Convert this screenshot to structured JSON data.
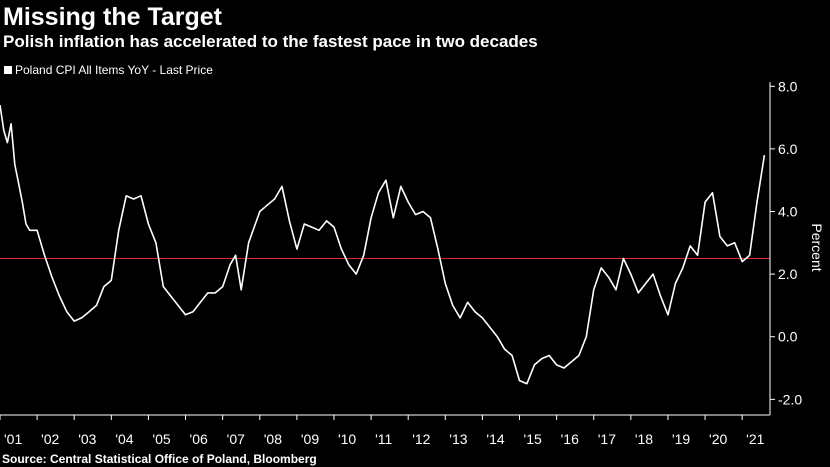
{
  "header": {
    "title": "Missing the Target",
    "subtitle": "Polish inflation has accelerated to the fastest pace in two decades"
  },
  "legend": {
    "label": "Poland CPI All Items YoY - Last Price"
  },
  "source": "Source: Central Statistical Office of Poland, Bloomberg",
  "colors": {
    "background": "#000000",
    "line": "#ffffff",
    "target_line": "#e0282a",
    "axis": "#ffffff"
  },
  "chart_data": {
    "type": "line",
    "title": "Missing the Target",
    "subtitle": "Polish inflation has accelerated to the fastest pace in two decades",
    "xlabel": "",
    "ylabel": "Percent",
    "xlim": [
      2001.0,
      2021.75
    ],
    "ylim": [
      -2.5,
      8.2
    ],
    "yticks": [
      "-2.0",
      "0.0",
      "2.0",
      "4.0",
      "6.0",
      "8.0"
    ],
    "ytick_values": [
      -2,
      0,
      2,
      4,
      6,
      8
    ],
    "xticks": [
      "'01",
      "'02",
      "'03",
      "'04",
      "'05",
      "'06",
      "'07",
      "'08",
      "'09",
      "'10",
      "'11",
      "'12",
      "'13",
      "'14",
      "'15",
      "'16",
      "'17",
      "'18",
      "'19",
      "'20",
      "'21"
    ],
    "xtick_values": [
      2001,
      2002,
      2003,
      2004,
      2005,
      2006,
      2007,
      2008,
      2009,
      2010,
      2011,
      2012,
      2013,
      2014,
      2015,
      2016,
      2017,
      2018,
      2019,
      2020,
      2021
    ],
    "grid": false,
    "legend_position": "top-left",
    "reference_lines": [
      {
        "axis": "y",
        "value": 2.5,
        "color": "#e0282a"
      }
    ],
    "series": [
      {
        "name": "Poland CPI All Items YoY - Last Price",
        "color": "#ffffff",
        "x": [
          2001.0,
          2001.1,
          2001.2,
          2001.3,
          2001.4,
          2001.5,
          2001.6,
          2001.7,
          2001.8,
          2002.0,
          2002.2,
          2002.4,
          2002.6,
          2002.8,
          2003.0,
          2003.2,
          2003.4,
          2003.6,
          2003.8,
          2004.0,
          2004.2,
          2004.4,
          2004.6,
          2004.8,
          2005.0,
          2005.2,
          2005.4,
          2005.6,
          2005.8,
          2006.0,
          2006.2,
          2006.4,
          2006.6,
          2006.8,
          2007.0,
          2007.2,
          2007.35,
          2007.5,
          2007.7,
          2008.0,
          2008.2,
          2008.4,
          2008.6,
          2008.8,
          2009.0,
          2009.2,
          2009.4,
          2009.6,
          2009.8,
          2010.0,
          2010.2,
          2010.4,
          2010.6,
          2010.8,
          2011.0,
          2011.2,
          2011.4,
          2011.6,
          2011.8,
          2012.0,
          2012.2,
          2012.4,
          2012.6,
          2012.8,
          2013.0,
          2013.2,
          2013.4,
          2013.6,
          2013.8,
          2014.0,
          2014.2,
          2014.4,
          2014.6,
          2014.8,
          2015.0,
          2015.2,
          2015.4,
          2015.6,
          2015.8,
          2016.0,
          2016.2,
          2016.4,
          2016.6,
          2016.8,
          2017.0,
          2017.2,
          2017.4,
          2017.6,
          2017.8,
          2018.0,
          2018.2,
          2018.4,
          2018.6,
          2018.8,
          2019.0,
          2019.2,
          2019.4,
          2019.6,
          2019.8,
          2020.0,
          2020.2,
          2020.4,
          2020.6,
          2020.8,
          2021.0,
          2021.2,
          2021.4,
          2021.6
        ],
        "values": [
          7.4,
          6.6,
          6.2,
          6.8,
          5.5,
          4.9,
          4.3,
          3.6,
          3.4,
          3.4,
          2.6,
          1.9,
          1.3,
          0.8,
          0.5,
          0.6,
          0.8,
          1.0,
          1.6,
          1.8,
          3.4,
          4.5,
          4.4,
          4.5,
          3.6,
          3.0,
          1.6,
          1.3,
          1.0,
          0.7,
          0.8,
          1.1,
          1.4,
          1.4,
          1.6,
          2.3,
          2.6,
          1.5,
          3.0,
          4.0,
          4.2,
          4.4,
          4.8,
          3.7,
          2.8,
          3.6,
          3.5,
          3.4,
          3.7,
          3.5,
          2.8,
          2.3,
          2.0,
          2.6,
          3.8,
          4.6,
          5.0,
          3.8,
          4.8,
          4.3,
          3.9,
          4.0,
          3.8,
          2.8,
          1.7,
          1.0,
          0.6,
          1.1,
          0.8,
          0.6,
          0.3,
          0.0,
          -0.4,
          -0.6,
          -1.4,
          -1.5,
          -0.9,
          -0.7,
          -0.6,
          -0.9,
          -1.0,
          -0.8,
          -0.6,
          0.0,
          1.5,
          2.2,
          1.9,
          1.5,
          2.5,
          2.0,
          1.4,
          1.7,
          2.0,
          1.3,
          0.7,
          1.7,
          2.2,
          2.9,
          2.6,
          4.3,
          4.6,
          3.2,
          2.9,
          3.0,
          2.4,
          2.6,
          4.3,
          5.8
        ]
      }
    ]
  }
}
